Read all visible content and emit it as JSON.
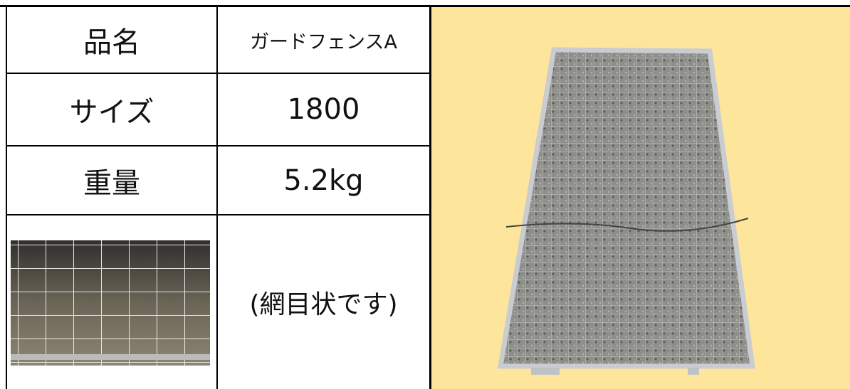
{
  "table": {
    "rows": [
      {
        "label": "品名",
        "value": "ガードフェンスA"
      },
      {
        "label": "サイズ",
        "value": "1800"
      },
      {
        "label": "重量",
        "value": "5.2kg"
      },
      {
        "value": "(網目状です)"
      }
    ]
  }
}
